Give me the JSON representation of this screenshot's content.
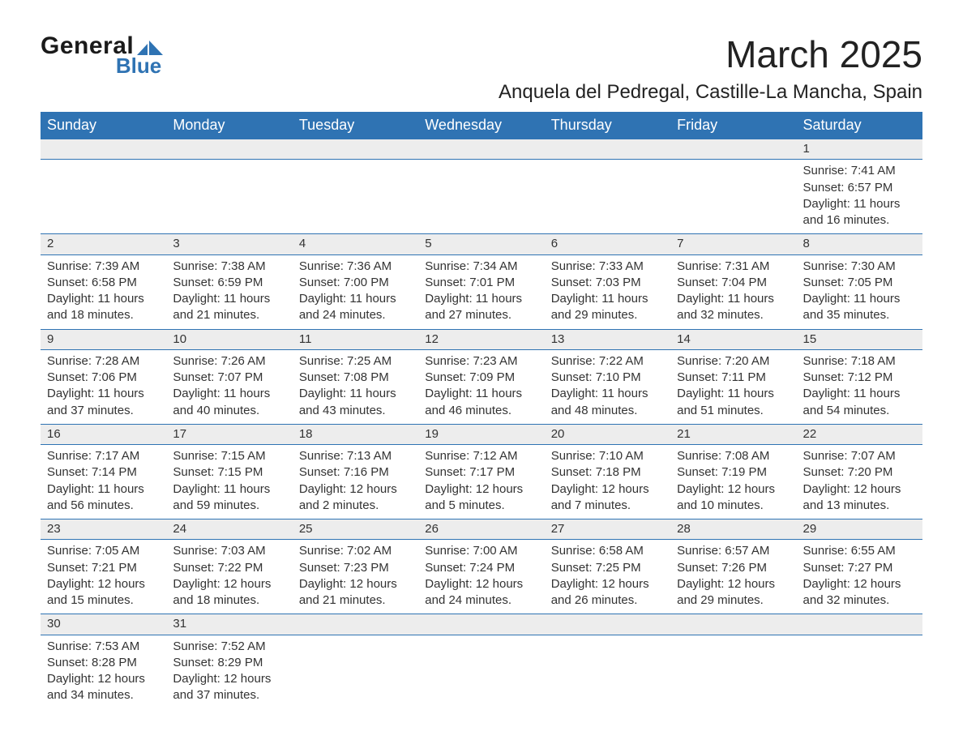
{
  "logo": {
    "word1": "General",
    "word2": "Blue"
  },
  "title": "March 2025",
  "location": "Anquela del Pedregal, Castille-La Mancha, Spain",
  "header_bg": "#2f73b3",
  "daynum_bg": "#ededed",
  "row_border": "#2f73b3",
  "headers": [
    "Sunday",
    "Monday",
    "Tuesday",
    "Wednesday",
    "Thursday",
    "Friday",
    "Saturday"
  ],
  "weeks": [
    [
      null,
      null,
      null,
      null,
      null,
      null,
      {
        "n": "1",
        "sr": "Sunrise: 7:41 AM",
        "ss": "Sunset: 6:57 PM",
        "d1": "Daylight: 11 hours",
        "d2": "and 16 minutes."
      }
    ],
    [
      {
        "n": "2",
        "sr": "Sunrise: 7:39 AM",
        "ss": "Sunset: 6:58 PM",
        "d1": "Daylight: 11 hours",
        "d2": "and 18 minutes."
      },
      {
        "n": "3",
        "sr": "Sunrise: 7:38 AM",
        "ss": "Sunset: 6:59 PM",
        "d1": "Daylight: 11 hours",
        "d2": "and 21 minutes."
      },
      {
        "n": "4",
        "sr": "Sunrise: 7:36 AM",
        "ss": "Sunset: 7:00 PM",
        "d1": "Daylight: 11 hours",
        "d2": "and 24 minutes."
      },
      {
        "n": "5",
        "sr": "Sunrise: 7:34 AM",
        "ss": "Sunset: 7:01 PM",
        "d1": "Daylight: 11 hours",
        "d2": "and 27 minutes."
      },
      {
        "n": "6",
        "sr": "Sunrise: 7:33 AM",
        "ss": "Sunset: 7:03 PM",
        "d1": "Daylight: 11 hours",
        "d2": "and 29 minutes."
      },
      {
        "n": "7",
        "sr": "Sunrise: 7:31 AM",
        "ss": "Sunset: 7:04 PM",
        "d1": "Daylight: 11 hours",
        "d2": "and 32 minutes."
      },
      {
        "n": "8",
        "sr": "Sunrise: 7:30 AM",
        "ss": "Sunset: 7:05 PM",
        "d1": "Daylight: 11 hours",
        "d2": "and 35 minutes."
      }
    ],
    [
      {
        "n": "9",
        "sr": "Sunrise: 7:28 AM",
        "ss": "Sunset: 7:06 PM",
        "d1": "Daylight: 11 hours",
        "d2": "and 37 minutes."
      },
      {
        "n": "10",
        "sr": "Sunrise: 7:26 AM",
        "ss": "Sunset: 7:07 PM",
        "d1": "Daylight: 11 hours",
        "d2": "and 40 minutes."
      },
      {
        "n": "11",
        "sr": "Sunrise: 7:25 AM",
        "ss": "Sunset: 7:08 PM",
        "d1": "Daylight: 11 hours",
        "d2": "and 43 minutes."
      },
      {
        "n": "12",
        "sr": "Sunrise: 7:23 AM",
        "ss": "Sunset: 7:09 PM",
        "d1": "Daylight: 11 hours",
        "d2": "and 46 minutes."
      },
      {
        "n": "13",
        "sr": "Sunrise: 7:22 AM",
        "ss": "Sunset: 7:10 PM",
        "d1": "Daylight: 11 hours",
        "d2": "and 48 minutes."
      },
      {
        "n": "14",
        "sr": "Sunrise: 7:20 AM",
        "ss": "Sunset: 7:11 PM",
        "d1": "Daylight: 11 hours",
        "d2": "and 51 minutes."
      },
      {
        "n": "15",
        "sr": "Sunrise: 7:18 AM",
        "ss": "Sunset: 7:12 PM",
        "d1": "Daylight: 11 hours",
        "d2": "and 54 minutes."
      }
    ],
    [
      {
        "n": "16",
        "sr": "Sunrise: 7:17 AM",
        "ss": "Sunset: 7:14 PM",
        "d1": "Daylight: 11 hours",
        "d2": "and 56 minutes."
      },
      {
        "n": "17",
        "sr": "Sunrise: 7:15 AM",
        "ss": "Sunset: 7:15 PM",
        "d1": "Daylight: 11 hours",
        "d2": "and 59 minutes."
      },
      {
        "n": "18",
        "sr": "Sunrise: 7:13 AM",
        "ss": "Sunset: 7:16 PM",
        "d1": "Daylight: 12 hours",
        "d2": "and 2 minutes."
      },
      {
        "n": "19",
        "sr": "Sunrise: 7:12 AM",
        "ss": "Sunset: 7:17 PM",
        "d1": "Daylight: 12 hours",
        "d2": "and 5 minutes."
      },
      {
        "n": "20",
        "sr": "Sunrise: 7:10 AM",
        "ss": "Sunset: 7:18 PM",
        "d1": "Daylight: 12 hours",
        "d2": "and 7 minutes."
      },
      {
        "n": "21",
        "sr": "Sunrise: 7:08 AM",
        "ss": "Sunset: 7:19 PM",
        "d1": "Daylight: 12 hours",
        "d2": "and 10 minutes."
      },
      {
        "n": "22",
        "sr": "Sunrise: 7:07 AM",
        "ss": "Sunset: 7:20 PM",
        "d1": "Daylight: 12 hours",
        "d2": "and 13 minutes."
      }
    ],
    [
      {
        "n": "23",
        "sr": "Sunrise: 7:05 AM",
        "ss": "Sunset: 7:21 PM",
        "d1": "Daylight: 12 hours",
        "d2": "and 15 minutes."
      },
      {
        "n": "24",
        "sr": "Sunrise: 7:03 AM",
        "ss": "Sunset: 7:22 PM",
        "d1": "Daylight: 12 hours",
        "d2": "and 18 minutes."
      },
      {
        "n": "25",
        "sr": "Sunrise: 7:02 AM",
        "ss": "Sunset: 7:23 PM",
        "d1": "Daylight: 12 hours",
        "d2": "and 21 minutes."
      },
      {
        "n": "26",
        "sr": "Sunrise: 7:00 AM",
        "ss": "Sunset: 7:24 PM",
        "d1": "Daylight: 12 hours",
        "d2": "and 24 minutes."
      },
      {
        "n": "27",
        "sr": "Sunrise: 6:58 AM",
        "ss": "Sunset: 7:25 PM",
        "d1": "Daylight: 12 hours",
        "d2": "and 26 minutes."
      },
      {
        "n": "28",
        "sr": "Sunrise: 6:57 AM",
        "ss": "Sunset: 7:26 PM",
        "d1": "Daylight: 12 hours",
        "d2": "and 29 minutes."
      },
      {
        "n": "29",
        "sr": "Sunrise: 6:55 AM",
        "ss": "Sunset: 7:27 PM",
        "d1": "Daylight: 12 hours",
        "d2": "and 32 minutes."
      }
    ],
    [
      {
        "n": "30",
        "sr": "Sunrise: 7:53 AM",
        "ss": "Sunset: 8:28 PM",
        "d1": "Daylight: 12 hours",
        "d2": "and 34 minutes."
      },
      {
        "n": "31",
        "sr": "Sunrise: 7:52 AM",
        "ss": "Sunset: 8:29 PM",
        "d1": "Daylight: 12 hours",
        "d2": "and 37 minutes."
      },
      null,
      null,
      null,
      null,
      null
    ]
  ]
}
